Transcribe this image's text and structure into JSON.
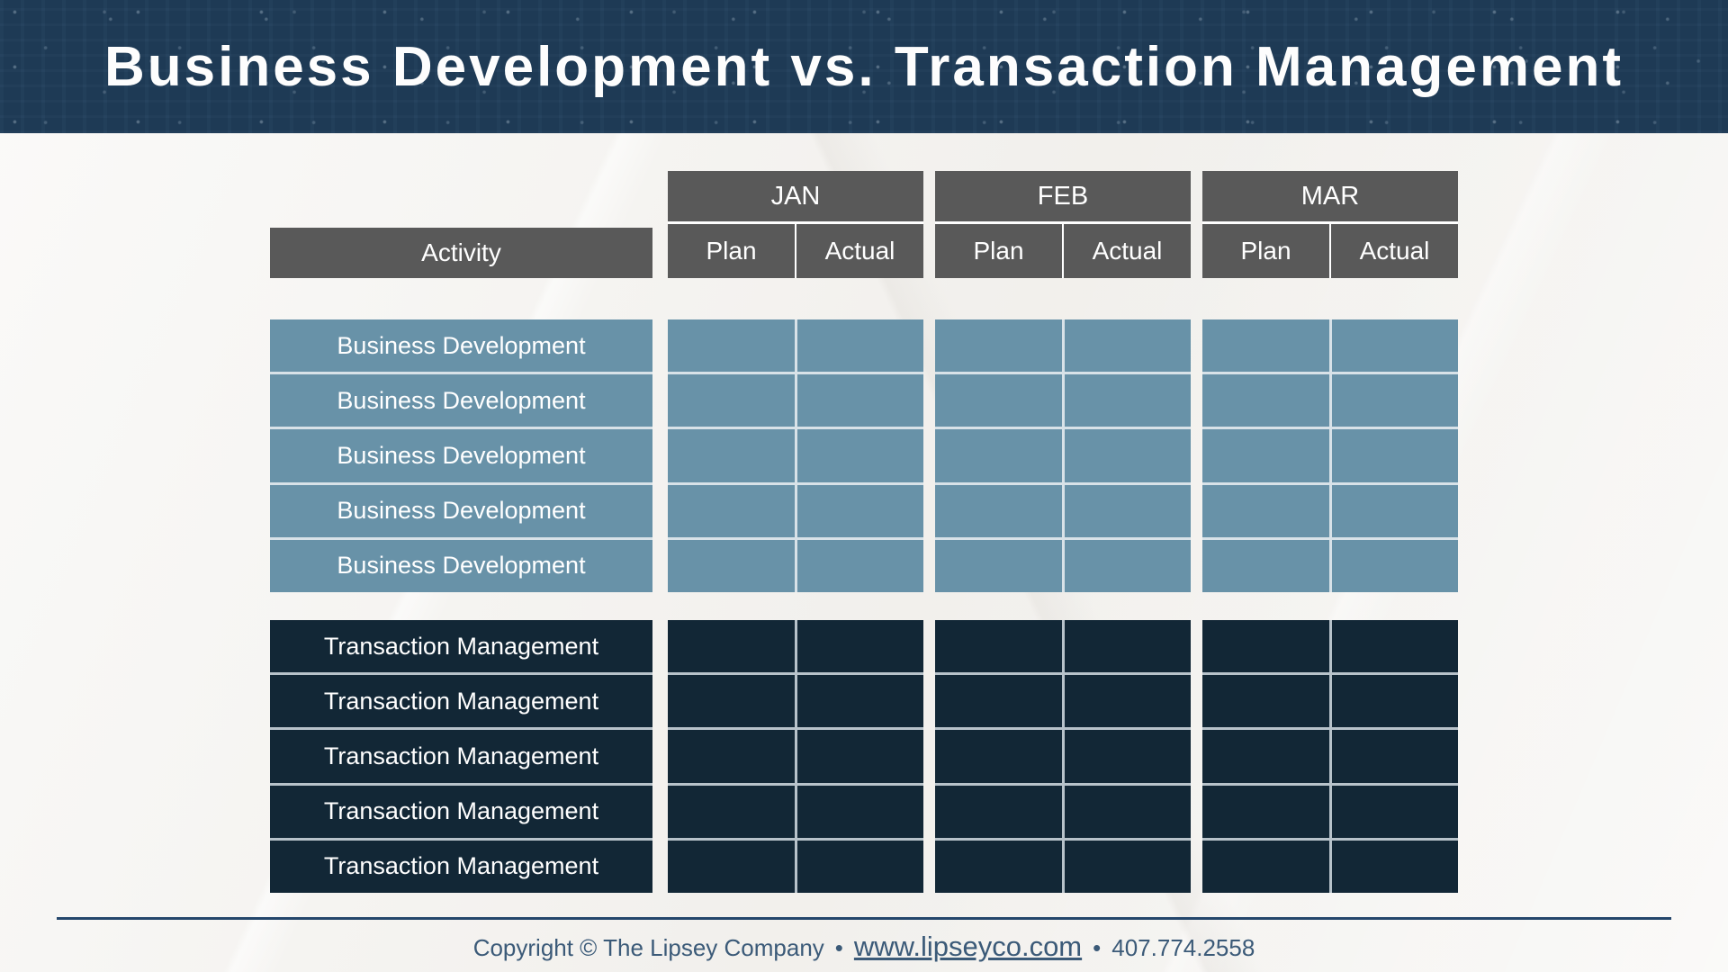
{
  "slide": {
    "title": "Business Development vs. Transaction Management"
  },
  "table": {
    "activity_header": "Activity",
    "months": [
      {
        "label": "JAN",
        "sub": [
          "Plan",
          "Actual"
        ]
      },
      {
        "label": "FEB",
        "sub": [
          "Plan",
          "Actual"
        ]
      },
      {
        "label": "MAR",
        "sub": [
          "Plan",
          "Actual"
        ]
      }
    ],
    "groups": [
      {
        "id": "business-development",
        "label": "Business Development",
        "row_count": 5,
        "color": "#6892a8"
      },
      {
        "id": "transaction-management",
        "label": "Transaction Management",
        "row_count": 5,
        "color": "#122736"
      }
    ]
  },
  "footer": {
    "copyright": "Copyright © The Lipsey Company",
    "bullet": "•",
    "website": "www.lipseyco.com",
    "phone": "407.774.2558"
  },
  "colors": {
    "banner_bg": "#1e3a55",
    "header_cell_bg": "#595959",
    "business_development_bg": "#6892a8",
    "transaction_management_bg": "#122736",
    "footer_text": "#3b5a78",
    "footer_line": "#24466b"
  }
}
